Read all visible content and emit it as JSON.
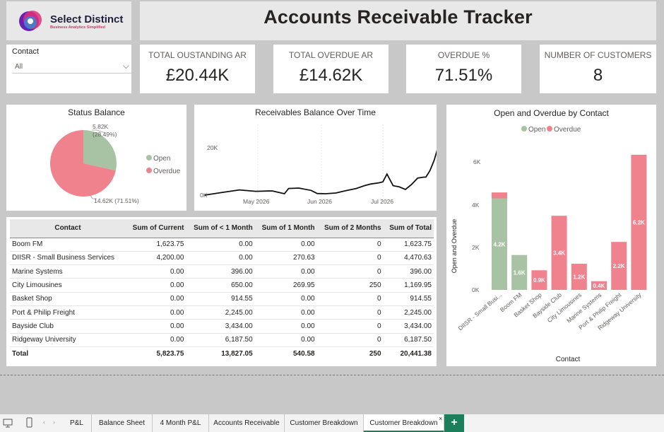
{
  "logo": {
    "name": "Select Distinct",
    "tagline": "Business Analytics Simplified"
  },
  "title": "Accounts Receivable Tracker",
  "slicer": {
    "label": "Contact",
    "value": "All"
  },
  "kpis": [
    {
      "label": "TOTAL OUSTANDING AR",
      "value": "£20.44K"
    },
    {
      "label": "TOTAL OVERDUE AR",
      "value": "£14.62K"
    },
    {
      "label": "OVERDUE %",
      "value": "71.51%"
    },
    {
      "label": "NUMBER OF CUSTOMERS",
      "value": "8"
    }
  ],
  "status_balance": {
    "title": "Status Balance",
    "legend": [
      "Open",
      "Overdue"
    ],
    "open_label_1": "5.82K",
    "open_label_2": "(28.49%)",
    "overdue_label": "14.62K (71.51%)"
  },
  "receivables": {
    "title": "Receivables Balance Over Time",
    "y_ticks": [
      "20K",
      "0K"
    ],
    "x_ticks": [
      "May 2026",
      "Jun 2026",
      "Jul 2026"
    ]
  },
  "open_overdue": {
    "title": "Open and Overdue by Contact",
    "legend": [
      "Open",
      "Overdue"
    ],
    "ylabel": "Open and Overdue",
    "xlabel": "Contact",
    "y_ticks": [
      "6K",
      "4K",
      "2K",
      "0K"
    ]
  },
  "table": {
    "headers": [
      "Contact",
      "Sum of Current",
      "Sum of < 1 Month",
      "Sum of 1 Month",
      "Sum of 2 Months",
      "Sum of Total"
    ],
    "rows": [
      [
        "Boom FM",
        "1,623.75",
        "0.00",
        "0.00",
        "0",
        "1,623.75"
      ],
      [
        "DIISR - Small Business Services",
        "4,200.00",
        "0.00",
        "270.63",
        "0",
        "4,470.63"
      ],
      [
        "Marine Systems",
        "0.00",
        "396.00",
        "0.00",
        "0",
        "396.00"
      ],
      [
        "City Limousines",
        "0.00",
        "650.00",
        "269.95",
        "250",
        "1,169.95"
      ],
      [
        "Basket Shop",
        "0.00",
        "914.55",
        "0.00",
        "0",
        "914.55"
      ],
      [
        "Port & Philip Freight",
        "0.00",
        "2,245.00",
        "0.00",
        "0",
        "2,245.00"
      ],
      [
        "Bayside Club",
        "0.00",
        "3,434.00",
        "0.00",
        "0",
        "3,434.00"
      ],
      [
        "Ridgeway University",
        "0.00",
        "6,187.50",
        "0.00",
        "0",
        "6,187.50"
      ]
    ],
    "total": [
      "Total",
      "5,823.75",
      "13,827.05",
      "540.58",
      "250",
      "20,441.38"
    ]
  },
  "tabs": [
    "P&L",
    "Balance Sheet",
    "4 Month P&L",
    "Accounts Receivable",
    "Customer Breakdown",
    "Customer Breakdown"
  ],
  "active_tab_index": 5,
  "colors": {
    "open": "#a8c3a3",
    "overdue": "#f0828e",
    "accent": "#1a7f5a"
  },
  "chart_data": [
    {
      "type": "pie",
      "title": "Status Balance",
      "categories": [
        "Open",
        "Overdue"
      ],
      "values": [
        5820,
        14620
      ],
      "legend": "right"
    },
    {
      "type": "line",
      "title": "Receivables Balance Over Time",
      "xlabel": "",
      "ylabel": "",
      "x": [
        "2026-04-05",
        "2026-04-14",
        "2026-04-22",
        "2026-04-30",
        "2026-05-08",
        "2026-05-14",
        "2026-05-16",
        "2026-05-21",
        "2026-05-27",
        "2026-05-30",
        "2026-06-03",
        "2026-06-08",
        "2026-06-13",
        "2026-06-18",
        "2026-06-22",
        "2026-06-25",
        "2026-06-29",
        "2026-07-01",
        "2026-07-03",
        "2026-07-06",
        "2026-07-09",
        "2026-07-12",
        "2026-07-15",
        "2026-07-18",
        "2026-07-21",
        "2026-07-22",
        "2026-07-24",
        "2026-07-26",
        "2026-07-28"
      ],
      "values": [
        0,
        1200,
        2200,
        1600,
        1800,
        600,
        2800,
        3000,
        2000,
        700,
        600,
        900,
        1900,
        2800,
        4000,
        4700,
        5200,
        5600,
        8900,
        4000,
        3500,
        2400,
        4500,
        7200,
        7600,
        7600,
        10400,
        14600,
        20440
      ],
      "ylim": [
        0,
        22000
      ],
      "grid": false
    },
    {
      "type": "bar",
      "stacked": true,
      "title": "Open and Overdue by Contact",
      "xlabel": "Contact",
      "ylabel": "Open and Overdue",
      "categories": [
        "DIISR - Small Busi...",
        "Boom FM",
        "Basket Shop",
        "Bayside Club",
        "City Limousines",
        "Marine Systems",
        "Port & Philip Freight",
        "Ridgeway University"
      ],
      "series": [
        {
          "name": "Open",
          "values": [
            4200,
            1600,
            0,
            0,
            0,
            0,
            0,
            0
          ],
          "labels": [
            "4.2K",
            "1.6K",
            "",
            "",
            "",
            "",
            "",
            ""
          ]
        },
        {
          "name": "Overdue",
          "values": [
            270,
            0,
            900,
            3400,
            1200,
            400,
            2200,
            6200
          ],
          "labels": [
            "",
            "",
            "0.9K",
            "3.4K",
            "1.2K",
            "0.4K",
            "2.2K",
            "6.2K"
          ]
        }
      ],
      "ylim": [
        0,
        7000
      ],
      "legend": "top"
    }
  ]
}
